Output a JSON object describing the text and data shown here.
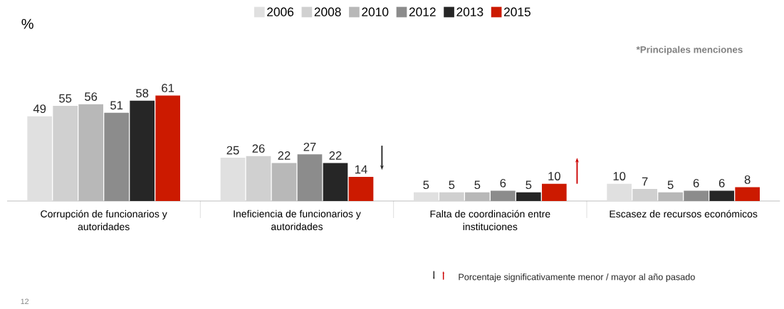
{
  "chart_data": {
    "type": "bar",
    "ylabel": "%",
    "categories": [
      "Corrupción de funcionarios y autoridades",
      "Ineficiencia de funcionarios y autoridades",
      "Falta de coordinación entre instituciones",
      "Escasez de recursos económicos"
    ],
    "series": [
      {
        "name": "2006",
        "color": "#e0e0e0",
        "values": [
          49,
          25,
          5,
          10
        ]
      },
      {
        "name": "2008",
        "color": "#d0d0d0",
        "values": [
          55,
          26,
          5,
          7
        ]
      },
      {
        "name": "2010",
        "color": "#b8b8b8",
        "values": [
          56,
          22,
          5,
          5
        ]
      },
      {
        "name": "2012",
        "color": "#8c8c8c",
        "values": [
          51,
          27,
          6,
          6
        ]
      },
      {
        "name": "2013",
        "color": "#262626",
        "values": [
          58,
          22,
          5,
          6
        ]
      },
      {
        "name": "2015",
        "color": "#cc1a00",
        "values": [
          61,
          14,
          10,
          8
        ]
      }
    ],
    "data_labels": true,
    "legend": "top",
    "annotations": [
      "*Principales menciones",
      "Porcentaje significativamente menor / mayor al año pasado",
      "12"
    ]
  }
}
